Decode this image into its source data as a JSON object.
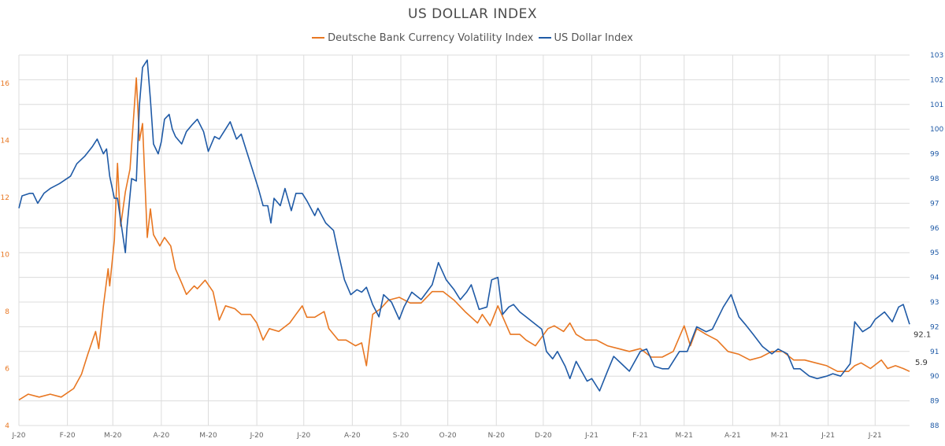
{
  "colors": {
    "dbcvi": "#E87722",
    "usd": "#1F5AA6",
    "grid": "#dcdcdc",
    "axis": "#666666"
  },
  "chart_data": {
    "type": "line",
    "title": "US DOLLAR INDEX",
    "legend_position": "top-center",
    "grid": true,
    "x_range": [
      "2020-01-01",
      "2021-07-23"
    ],
    "x_tick_labels": [
      "J-20",
      "F-20",
      "M-20",
      "A-20",
      "M-20",
      "J-20",
      "J-20",
      "A-20",
      "S-20",
      "O-20",
      "N-20",
      "D-20",
      "J-21",
      "F-21",
      "M-21",
      "A-21",
      "M-21",
      "J-21",
      "J-21"
    ],
    "x_tick_dates": [
      "2020-01-01",
      "2020-02-01",
      "2020-03-01",
      "2020-04-01",
      "2020-05-01",
      "2020-06-01",
      "2020-07-01",
      "2020-08-01",
      "2020-09-01",
      "2020-10-01",
      "2020-11-01",
      "2020-12-01",
      "2021-01-01",
      "2021-02-01",
      "2021-03-01",
      "2021-04-01",
      "2021-05-01",
      "2021-06-01",
      "2021-07-01"
    ],
    "y_left": {
      "min": 4,
      "max": 17,
      "ticks": [
        4,
        6,
        8,
        10,
        12,
        14,
        16
      ],
      "tick_labels": [
        "4",
        "6",
        "8",
        "10",
        "12",
        "14",
        "16"
      ]
    },
    "y_right": {
      "min": 88,
      "max": 103,
      "ticks": [
        88,
        89,
        90,
        91,
        92,
        93,
        94,
        95,
        96,
        97,
        98,
        99,
        100,
        101,
        102,
        103
      ],
      "tick_labels": [
        "88",
        "89",
        "90",
        "91",
        "92",
        "93",
        "94",
        "95",
        "96",
        "97",
        "98",
        "99",
        "100",
        "101",
        "102",
        "103"
      ]
    },
    "series": [
      {
        "name": "Deutsche Bank Currency Volatility Index",
        "axis": "left",
        "color": "#E87722",
        "last_value_label": "5.9",
        "points": [
          [
            "2020-01-01",
            4.9
          ],
          [
            "2020-01-07",
            5.1
          ],
          [
            "2020-01-14",
            5.0
          ],
          [
            "2020-01-21",
            5.1
          ],
          [
            "2020-01-28",
            5.0
          ],
          [
            "2020-02-05",
            5.3
          ],
          [
            "2020-02-10",
            5.8
          ],
          [
            "2020-02-14",
            6.5
          ],
          [
            "2020-02-19",
            7.3
          ],
          [
            "2020-02-21",
            6.7
          ],
          [
            "2020-02-24",
            8.2
          ],
          [
            "2020-02-27",
            9.5
          ],
          [
            "2020-02-28",
            8.9
          ],
          [
            "2020-03-02",
            10.5
          ],
          [
            "2020-03-04",
            13.2
          ],
          [
            "2020-03-06",
            11.0
          ],
          [
            "2020-03-09",
            12.2
          ],
          [
            "2020-03-12",
            13.0
          ],
          [
            "2020-03-16",
            16.2
          ],
          [
            "2020-03-18",
            14.0
          ],
          [
            "2020-03-20",
            14.6
          ],
          [
            "2020-03-23",
            10.6
          ],
          [
            "2020-03-25",
            11.6
          ],
          [
            "2020-03-27",
            10.7
          ],
          [
            "2020-03-31",
            10.3
          ],
          [
            "2020-04-03",
            10.6
          ],
          [
            "2020-04-07",
            10.3
          ],
          [
            "2020-04-10",
            9.5
          ],
          [
            "2020-04-14",
            9.0
          ],
          [
            "2020-04-17",
            8.6
          ],
          [
            "2020-04-22",
            8.9
          ],
          [
            "2020-04-24",
            8.8
          ],
          [
            "2020-04-29",
            9.1
          ],
          [
            "2020-05-04",
            8.7
          ],
          [
            "2020-05-08",
            7.7
          ],
          [
            "2020-05-12",
            8.2
          ],
          [
            "2020-05-18",
            8.1
          ],
          [
            "2020-05-22",
            7.9
          ],
          [
            "2020-05-28",
            7.9
          ],
          [
            "2020-06-01",
            7.6
          ],
          [
            "2020-06-05",
            7.0
          ],
          [
            "2020-06-09",
            7.4
          ],
          [
            "2020-06-15",
            7.3
          ],
          [
            "2020-06-22",
            7.6
          ],
          [
            "2020-06-26",
            7.9
          ],
          [
            "2020-06-30",
            8.2
          ],
          [
            "2020-07-03",
            7.8
          ],
          [
            "2020-07-08",
            7.8
          ],
          [
            "2020-07-14",
            8.0
          ],
          [
            "2020-07-17",
            7.4
          ],
          [
            "2020-07-23",
            7.0
          ],
          [
            "2020-07-28",
            7.0
          ],
          [
            "2020-08-03",
            6.8
          ],
          [
            "2020-08-07",
            6.9
          ],
          [
            "2020-08-10",
            6.1
          ],
          [
            "2020-08-14",
            7.9
          ],
          [
            "2020-08-19",
            8.1
          ],
          [
            "2020-08-24",
            8.4
          ],
          [
            "2020-08-31",
            8.5
          ],
          [
            "2020-09-07",
            8.3
          ],
          [
            "2020-09-14",
            8.3
          ],
          [
            "2020-09-21",
            8.7
          ],
          [
            "2020-09-28",
            8.7
          ],
          [
            "2020-10-05",
            8.4
          ],
          [
            "2020-10-12",
            8.0
          ],
          [
            "2020-10-16",
            7.8
          ],
          [
            "2020-10-20",
            7.6
          ],
          [
            "2020-10-23",
            7.9
          ],
          [
            "2020-10-28",
            7.5
          ],
          [
            "2020-11-02",
            8.2
          ],
          [
            "2020-11-06",
            7.7
          ],
          [
            "2020-11-10",
            7.2
          ],
          [
            "2020-11-16",
            7.2
          ],
          [
            "2020-11-20",
            7.0
          ],
          [
            "2020-11-26",
            6.8
          ],
          [
            "2020-11-30",
            7.1
          ],
          [
            "2020-12-04",
            7.4
          ],
          [
            "2020-12-08",
            7.5
          ],
          [
            "2020-12-14",
            7.3
          ],
          [
            "2020-12-18",
            7.6
          ],
          [
            "2020-12-22",
            7.2
          ],
          [
            "2020-12-28",
            7.0
          ],
          [
            "2021-01-04",
            7.0
          ],
          [
            "2021-01-11",
            6.8
          ],
          [
            "2021-01-18",
            6.7
          ],
          [
            "2021-01-25",
            6.6
          ],
          [
            "2021-02-01",
            6.7
          ],
          [
            "2021-02-08",
            6.4
          ],
          [
            "2021-02-15",
            6.4
          ],
          [
            "2021-02-22",
            6.6
          ],
          [
            "2021-03-01",
            7.5
          ],
          [
            "2021-03-05",
            6.8
          ],
          [
            "2021-03-09",
            7.4
          ],
          [
            "2021-03-15",
            7.2
          ],
          [
            "2021-03-22",
            7.0
          ],
          [
            "2021-03-29",
            6.6
          ],
          [
            "2021-04-05",
            6.5
          ],
          [
            "2021-04-12",
            6.3
          ],
          [
            "2021-04-19",
            6.4
          ],
          [
            "2021-04-26",
            6.6
          ],
          [
            "2021-05-03",
            6.6
          ],
          [
            "2021-05-10",
            6.3
          ],
          [
            "2021-05-17",
            6.3
          ],
          [
            "2021-05-24",
            6.2
          ],
          [
            "2021-05-31",
            6.1
          ],
          [
            "2021-06-07",
            5.9
          ],
          [
            "2021-06-14",
            5.9
          ],
          [
            "2021-06-18",
            6.1
          ],
          [
            "2021-06-22",
            6.2
          ],
          [
            "2021-06-28",
            6.0
          ],
          [
            "2021-07-05",
            6.3
          ],
          [
            "2021-07-09",
            6.0
          ],
          [
            "2021-07-14",
            6.1
          ],
          [
            "2021-07-19",
            6.0
          ],
          [
            "2021-07-23",
            5.9
          ]
        ]
      },
      {
        "name": "US Dollar Index",
        "axis": "right",
        "color": "#1F5AA6",
        "last_value_label": "92.1",
        "points": [
          [
            "2020-01-01",
            96.8
          ],
          [
            "2020-01-03",
            97.3
          ],
          [
            "2020-01-08",
            97.4
          ],
          [
            "2020-01-10",
            97.4
          ],
          [
            "2020-01-13",
            97.0
          ],
          [
            "2020-01-17",
            97.4
          ],
          [
            "2020-01-21",
            97.6
          ],
          [
            "2020-01-27",
            97.8
          ],
          [
            "2020-02-03",
            98.1
          ],
          [
            "2020-02-07",
            98.6
          ],
          [
            "2020-02-12",
            98.9
          ],
          [
            "2020-02-17",
            99.3
          ],
          [
            "2020-02-20",
            99.6
          ],
          [
            "2020-02-24",
            99.0
          ],
          [
            "2020-02-26",
            99.2
          ],
          [
            "2020-02-28",
            98.1
          ],
          [
            "2020-03-02",
            97.2
          ],
          [
            "2020-03-04",
            97.2
          ],
          [
            "2020-03-06",
            96.3
          ],
          [
            "2020-03-09",
            95.0
          ],
          [
            "2020-03-10",
            96.0
          ],
          [
            "2020-03-13",
            98.0
          ],
          [
            "2020-03-16",
            97.9
          ],
          [
            "2020-03-18",
            101.0
          ],
          [
            "2020-03-20",
            102.5
          ],
          [
            "2020-03-23",
            102.8
          ],
          [
            "2020-03-25",
            101.2
          ],
          [
            "2020-03-27",
            99.4
          ],
          [
            "2020-03-30",
            99.0
          ],
          [
            "2020-04-01",
            99.5
          ],
          [
            "2020-04-03",
            100.4
          ],
          [
            "2020-04-06",
            100.6
          ],
          [
            "2020-04-08",
            100.0
          ],
          [
            "2020-04-10",
            99.7
          ],
          [
            "2020-04-14",
            99.4
          ],
          [
            "2020-04-17",
            99.9
          ],
          [
            "2020-04-21",
            100.2
          ],
          [
            "2020-04-24",
            100.4
          ],
          [
            "2020-04-28",
            99.9
          ],
          [
            "2020-05-01",
            99.1
          ],
          [
            "2020-05-05",
            99.7
          ],
          [
            "2020-05-08",
            99.6
          ],
          [
            "2020-05-12",
            100.0
          ],
          [
            "2020-05-15",
            100.3
          ],
          [
            "2020-05-19",
            99.6
          ],
          [
            "2020-05-22",
            99.8
          ],
          [
            "2020-05-26",
            99.0
          ],
          [
            "2020-05-29",
            98.4
          ],
          [
            "2020-06-02",
            97.6
          ],
          [
            "2020-06-05",
            96.9
          ],
          [
            "2020-06-08",
            96.9
          ],
          [
            "2020-06-10",
            96.2
          ],
          [
            "2020-06-12",
            97.2
          ],
          [
            "2020-06-16",
            96.9
          ],
          [
            "2020-06-19",
            97.6
          ],
          [
            "2020-06-23",
            96.7
          ],
          [
            "2020-06-26",
            97.4
          ],
          [
            "2020-06-30",
            97.4
          ],
          [
            "2020-07-03",
            97.1
          ],
          [
            "2020-07-08",
            96.5
          ],
          [
            "2020-07-10",
            96.8
          ],
          [
            "2020-07-15",
            96.2
          ],
          [
            "2020-07-20",
            95.9
          ],
          [
            "2020-07-23",
            95.0
          ],
          [
            "2020-07-27",
            93.9
          ],
          [
            "2020-07-31",
            93.3
          ],
          [
            "2020-08-04",
            93.5
          ],
          [
            "2020-08-07",
            93.4
          ],
          [
            "2020-08-10",
            93.6
          ],
          [
            "2020-08-14",
            92.9
          ],
          [
            "2020-08-18",
            92.4
          ],
          [
            "2020-08-21",
            93.3
          ],
          [
            "2020-08-26",
            93.0
          ],
          [
            "2020-08-31",
            92.3
          ],
          [
            "2020-09-03",
            92.8
          ],
          [
            "2020-09-08",
            93.4
          ],
          [
            "2020-09-10",
            93.3
          ],
          [
            "2020-09-14",
            93.1
          ],
          [
            "2020-09-21",
            93.7
          ],
          [
            "2020-09-25",
            94.6
          ],
          [
            "2020-09-30",
            93.9
          ],
          [
            "2020-10-05",
            93.5
          ],
          [
            "2020-10-09",
            93.1
          ],
          [
            "2020-10-13",
            93.4
          ],
          [
            "2020-10-16",
            93.7
          ],
          [
            "2020-10-21",
            92.7
          ],
          [
            "2020-10-26",
            92.8
          ],
          [
            "2020-10-29",
            93.9
          ],
          [
            "2020-11-02",
            94.0
          ],
          [
            "2020-11-05",
            92.5
          ],
          [
            "2020-11-09",
            92.8
          ],
          [
            "2020-11-12",
            92.9
          ],
          [
            "2020-11-16",
            92.6
          ],
          [
            "2020-11-20",
            92.4
          ],
          [
            "2020-11-24",
            92.2
          ],
          [
            "2020-11-30",
            91.9
          ],
          [
            "2020-12-03",
            91.0
          ],
          [
            "2020-12-07",
            90.7
          ],
          [
            "2020-12-10",
            91.0
          ],
          [
            "2020-12-15",
            90.4
          ],
          [
            "2020-12-18",
            89.9
          ],
          [
            "2020-12-22",
            90.6
          ],
          [
            "2020-12-29",
            89.8
          ],
          [
            "2021-01-01",
            89.9
          ],
          [
            "2021-01-06",
            89.4
          ],
          [
            "2021-01-11",
            90.2
          ],
          [
            "2021-01-15",
            90.8
          ],
          [
            "2021-01-20",
            90.5
          ],
          [
            "2021-01-25",
            90.2
          ],
          [
            "2021-02-01",
            91.0
          ],
          [
            "2021-02-05",
            91.1
          ],
          [
            "2021-02-10",
            90.4
          ],
          [
            "2021-02-15",
            90.3
          ],
          [
            "2021-02-19",
            90.3
          ],
          [
            "2021-02-26",
            91.0
          ],
          [
            "2021-03-03",
            91.0
          ],
          [
            "2021-03-09",
            92.0
          ],
          [
            "2021-03-15",
            91.8
          ],
          [
            "2021-03-19",
            91.9
          ],
          [
            "2021-03-26",
            92.8
          ],
          [
            "2021-03-31",
            93.3
          ],
          [
            "2021-04-05",
            92.4
          ],
          [
            "2021-04-09",
            92.1
          ],
          [
            "2021-04-14",
            91.7
          ],
          [
            "2021-04-20",
            91.2
          ],
          [
            "2021-04-26",
            90.9
          ],
          [
            "2021-04-30",
            91.1
          ],
          [
            "2021-05-06",
            90.9
          ],
          [
            "2021-05-10",
            90.3
          ],
          [
            "2021-05-14",
            90.3
          ],
          [
            "2021-05-20",
            90.0
          ],
          [
            "2021-05-25",
            89.9
          ],
          [
            "2021-05-31",
            90.0
          ],
          [
            "2021-06-04",
            90.1
          ],
          [
            "2021-06-09",
            90.0
          ],
          [
            "2021-06-15",
            90.5
          ],
          [
            "2021-06-18",
            92.2
          ],
          [
            "2021-06-23",
            91.8
          ],
          [
            "2021-06-28",
            92.0
          ],
          [
            "2021-07-01",
            92.3
          ],
          [
            "2021-07-07",
            92.6
          ],
          [
            "2021-07-12",
            92.2
          ],
          [
            "2021-07-16",
            92.8
          ],
          [
            "2021-07-19",
            92.9
          ],
          [
            "2021-07-23",
            92.1
          ]
        ]
      }
    ]
  }
}
